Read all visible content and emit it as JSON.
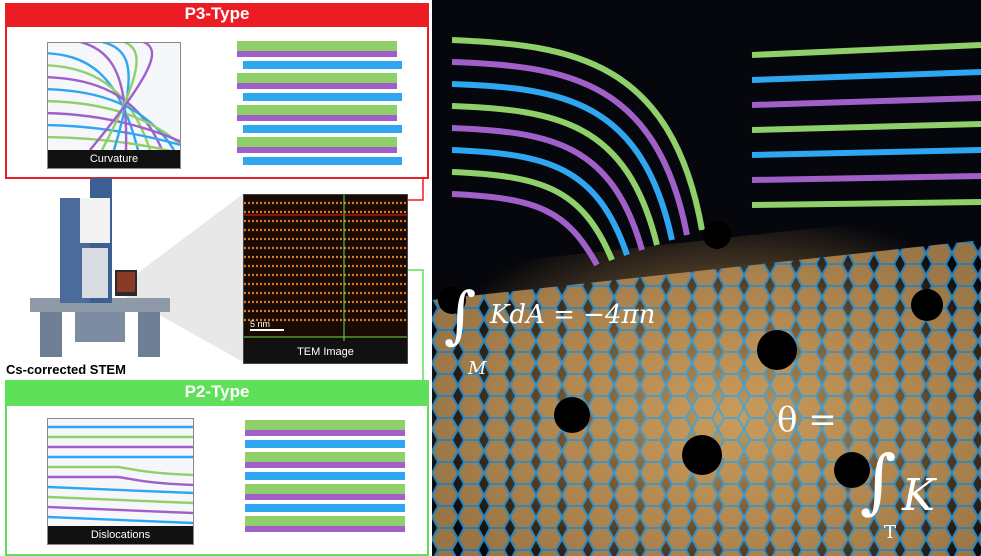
{
  "p3": {
    "title": "P3-Type",
    "curvature_label": "Curvature"
  },
  "p2": {
    "title": "P2-Type",
    "dislocations_label": "Dislocations"
  },
  "tem": {
    "label": "TEM Image",
    "scale_bar": "5 nm"
  },
  "stem": {
    "caption": "Cs-corrected STEM"
  },
  "equations": {
    "gauss_bonnet": "KdA = −4πn",
    "gauss_bonnet_subscript": "M",
    "theta": "θ =",
    "theta_rhs": "K",
    "theta_subscript": "T"
  },
  "colors": {
    "p3_red": "#ec1c24",
    "p2_green": "#5fe05a",
    "lattice_blue": "#2fa6f0",
    "lattice_green": "#8fd06a",
    "lattice_purple": "#a060c8",
    "tem_orange": "#d8782a"
  }
}
